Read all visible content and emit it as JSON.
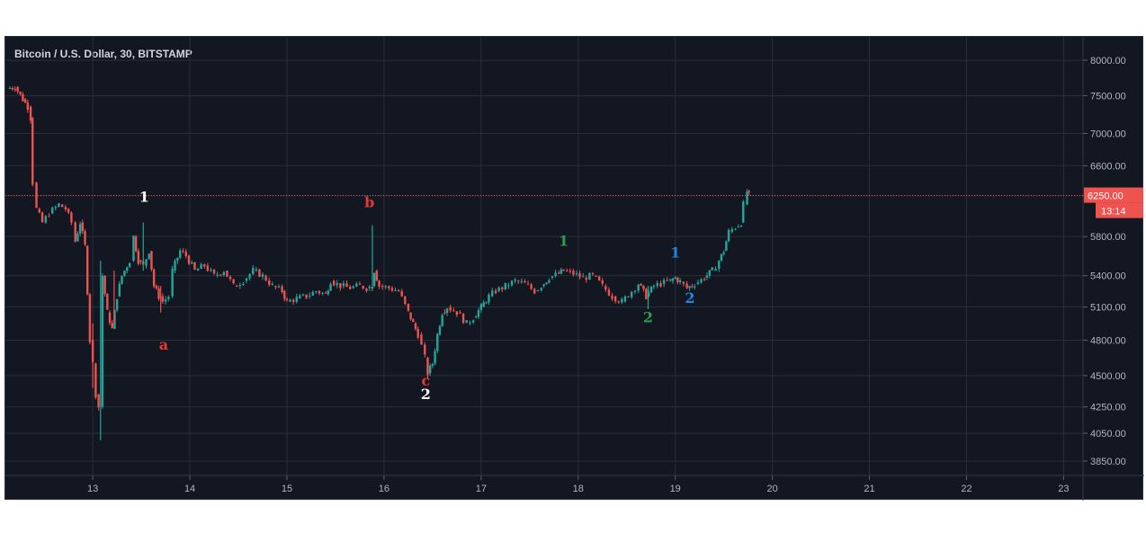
{
  "chart_data": {
    "type": "candlestick",
    "title": "Bitcoin / U.S. Dollar, 30, BITSTAMP",
    "xlabel": "",
    "ylabel": "",
    "x_ticks": [
      "13",
      "14",
      "15",
      "16",
      "17",
      "18",
      "19",
      "20",
      "21",
      "22",
      "23"
    ],
    "y_ticks": [
      "8000.00",
      "7500.00",
      "7000.00",
      "6600.00",
      "6250.00",
      "5800.00",
      "5400.00",
      "5100.00",
      "4800.00",
      "4500.00",
      "4250.00",
      "4050.00",
      "3850.00"
    ],
    "log_scale": true,
    "ylim": [
      3750,
      8350
    ],
    "xlim": [
      12.1,
      23.2
    ],
    "grid": true,
    "last_price": "6250.00",
    "countdown": "13:14",
    "colors": {
      "background": "#131722",
      "up": "#26a69a",
      "down": "#ef5350",
      "grid": "#2a2e39",
      "price_line": "#ef5350",
      "badge": "#ef5350"
    },
    "price_path": [
      [
        12.12,
        7600
      ],
      [
        12.2,
        7620
      ],
      [
        12.28,
        7450
      ],
      [
        12.33,
        7350
      ],
      [
        12.36,
        7200
      ],
      [
        12.38,
        6400
      ],
      [
        12.42,
        6100
      ],
      [
        12.48,
        5950
      ],
      [
        12.55,
        6050
      ],
      [
        12.65,
        6150
      ],
      [
        12.72,
        6100
      ],
      [
        12.78,
        5950
      ],
      [
        12.82,
        5750
      ],
      [
        12.87,
        5950
      ],
      [
        12.92,
        5700
      ],
      [
        12.97,
        4800
      ],
      [
        13.0,
        4600
      ],
      [
        13.03,
        4350
      ],
      [
        13.06,
        4250
      ],
      [
        13.1,
        5400
      ],
      [
        13.15,
        5050
      ],
      [
        13.2,
        4900
      ],
      [
        13.25,
        5200
      ],
      [
        13.3,
        5400
      ],
      [
        13.38,
        5550
      ],
      [
        13.42,
        5800
      ],
      [
        13.47,
        5550
      ],
      [
        13.52,
        5500
      ],
      [
        13.58,
        5650
      ],
      [
        13.63,
        5300
      ],
      [
        13.68,
        5200
      ],
      [
        13.72,
        5150
      ],
      [
        13.78,
        5200
      ],
      [
        13.82,
        5450
      ],
      [
        13.9,
        5650
      ],
      [
        13.96,
        5600
      ],
      [
        14.05,
        5450
      ],
      [
        14.15,
        5500
      ],
      [
        14.25,
        5400
      ],
      [
        14.35,
        5450
      ],
      [
        14.45,
        5300
      ],
      [
        14.55,
        5350
      ],
      [
        14.65,
        5450
      ],
      [
        14.75,
        5400
      ],
      [
        14.85,
        5300
      ],
      [
        14.95,
        5250
      ],
      [
        15.0,
        5150
      ],
      [
        15.1,
        5180
      ],
      [
        15.2,
        5200
      ],
      [
        15.3,
        5250
      ],
      [
        15.4,
        5220
      ],
      [
        15.45,
        5350
      ],
      [
        15.55,
        5300
      ],
      [
        15.65,
        5280
      ],
      [
        15.75,
        5300
      ],
      [
        15.82,
        5280
      ],
      [
        15.88,
        5300
      ],
      [
        15.9,
        5450
      ],
      [
        15.95,
        5300
      ],
      [
        16.05,
        5280
      ],
      [
        16.15,
        5250
      ],
      [
        16.25,
        5050
      ],
      [
        16.3,
        4950
      ],
      [
        16.35,
        4850
      ],
      [
        16.42,
        4650
      ],
      [
        16.45,
        4520
      ],
      [
        16.5,
        4600
      ],
      [
        16.55,
        4850
      ],
      [
        16.6,
        5050
      ],
      [
        16.65,
        5100
      ],
      [
        16.75,
        5050
      ],
      [
        16.85,
        4950
      ],
      [
        16.92,
        5000
      ],
      [
        17.0,
        5100
      ],
      [
        17.08,
        5200
      ],
      [
        17.15,
        5250
      ],
      [
        17.25,
        5300
      ],
      [
        17.35,
        5350
      ],
      [
        17.45,
        5320
      ],
      [
        17.55,
        5250
      ],
      [
        17.62,
        5300
      ],
      [
        17.7,
        5380
      ],
      [
        17.8,
        5420
      ],
      [
        17.85,
        5450
      ],
      [
        17.95,
        5420
      ],
      [
        18.05,
        5380
      ],
      [
        18.15,
        5400
      ],
      [
        18.25,
        5300
      ],
      [
        18.35,
        5200
      ],
      [
        18.45,
        5150
      ],
      [
        18.55,
        5250
      ],
      [
        18.62,
        5320
      ],
      [
        18.7,
        5200
      ],
      [
        18.78,
        5300
      ],
      [
        18.85,
        5320
      ],
      [
        18.95,
        5350
      ],
      [
        19.0,
        5380
      ],
      [
        19.05,
        5340
      ],
      [
        19.12,
        5280
      ],
      [
        19.2,
        5320
      ],
      [
        19.3,
        5380
      ],
      [
        19.38,
        5450
      ],
      [
        19.45,
        5550
      ],
      [
        19.5,
        5650
      ],
      [
        19.55,
        5850
      ],
      [
        19.62,
        5900
      ],
      [
        19.68,
        5950
      ],
      [
        19.7,
        6150
      ],
      [
        19.74,
        6300
      ],
      [
        19.76,
        6250
      ]
    ],
    "spikes": [
      [
        13.08,
        4000,
        5550
      ],
      [
        13.0,
        4400,
        4950
      ],
      [
        13.52,
        5450,
        5950
      ],
      [
        13.7,
        5050,
        5300
      ],
      [
        15.88,
        5250,
        5920
      ],
      [
        16.45,
        4470,
        4650
      ],
      [
        18.72,
        5080,
        5300
      ],
      [
        13.22,
        4950,
        5450
      ]
    ],
    "annotations": [
      {
        "text": "1",
        "x": 13.53,
        "y": 6180,
        "color": "#ffffff"
      },
      {
        "text": "a",
        "x": 13.73,
        "y": 4720,
        "color": "#e53935"
      },
      {
        "text": "b",
        "x": 15.85,
        "y": 6120,
        "color": "#e53935"
      },
      {
        "text": "c",
        "x": 16.43,
        "y": 4420,
        "color": "#e53935"
      },
      {
        "text": "2",
        "x": 16.43,
        "y": 4310,
        "color": "#ffffff"
      },
      {
        "text": "1",
        "x": 17.85,
        "y": 5700,
        "color": "#2e9e4f"
      },
      {
        "text": "2",
        "x": 18.72,
        "y": 4960,
        "color": "#2e9e4f"
      },
      {
        "text": "1",
        "x": 19.0,
        "y": 5580,
        "color": "#1e88e5"
      },
      {
        "text": "2",
        "x": 19.15,
        "y": 5140,
        "color": "#1e88e5"
      }
    ]
  }
}
